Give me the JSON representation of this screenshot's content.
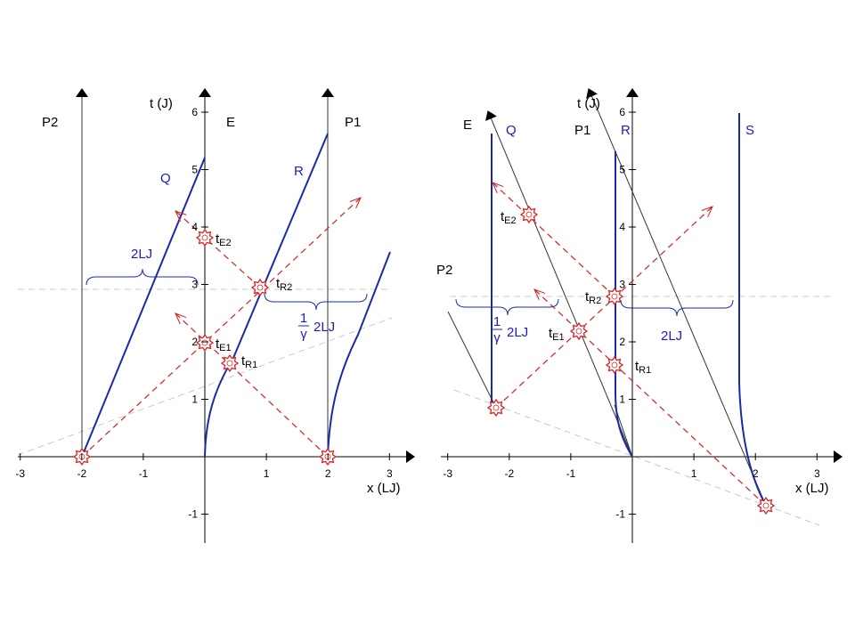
{
  "left": {
    "axes": {
      "x_label": "x (LJ)",
      "t_label": "t (J)",
      "x_ticks": [
        -3,
        -2,
        -1,
        1,
        2,
        3
      ],
      "t_ticks": [
        -1,
        1,
        2,
        3,
        4,
        5,
        6
      ]
    },
    "worldlines": {
      "p2": "P2",
      "e": "E",
      "p1": "P1",
      "q": "Q",
      "r": "R"
    },
    "events": {
      "te2": {
        "main": "t",
        "sub": "E2"
      },
      "te1": {
        "main": "t",
        "sub": "E1"
      },
      "tr2": {
        "main": "t",
        "sub": "R2"
      },
      "tr1": {
        "main": "t",
        "sub": "R1"
      }
    },
    "distances": {
      "rest": "2LJ",
      "contracted": {
        "num": "1",
        "den": "γ",
        "text": "2LJ"
      }
    }
  },
  "right": {
    "axes": {
      "x_label": "x (LJ)",
      "t_label": "t (J)",
      "x_ticks": [
        -3,
        -2,
        -1,
        1,
        2,
        3
      ],
      "t_ticks": [
        -1,
        1,
        2,
        3,
        4,
        5,
        6
      ]
    },
    "worldlines": {
      "e": "E",
      "q": "Q",
      "p1": "P1",
      "r": "R",
      "s": "S",
      "p2": "P2"
    },
    "events": {
      "te2": {
        "main": "t",
        "sub": "E2"
      },
      "tr2": {
        "main": "t",
        "sub": "R2"
      },
      "te1": {
        "main": "t",
        "sub": "E1"
      },
      "tr1": {
        "main": "t",
        "sub": "R1"
      }
    },
    "distances": {
      "contracted": {
        "num": "1",
        "den": "γ",
        "text": "2LJ"
      },
      "rest": "2LJ"
    }
  }
}
